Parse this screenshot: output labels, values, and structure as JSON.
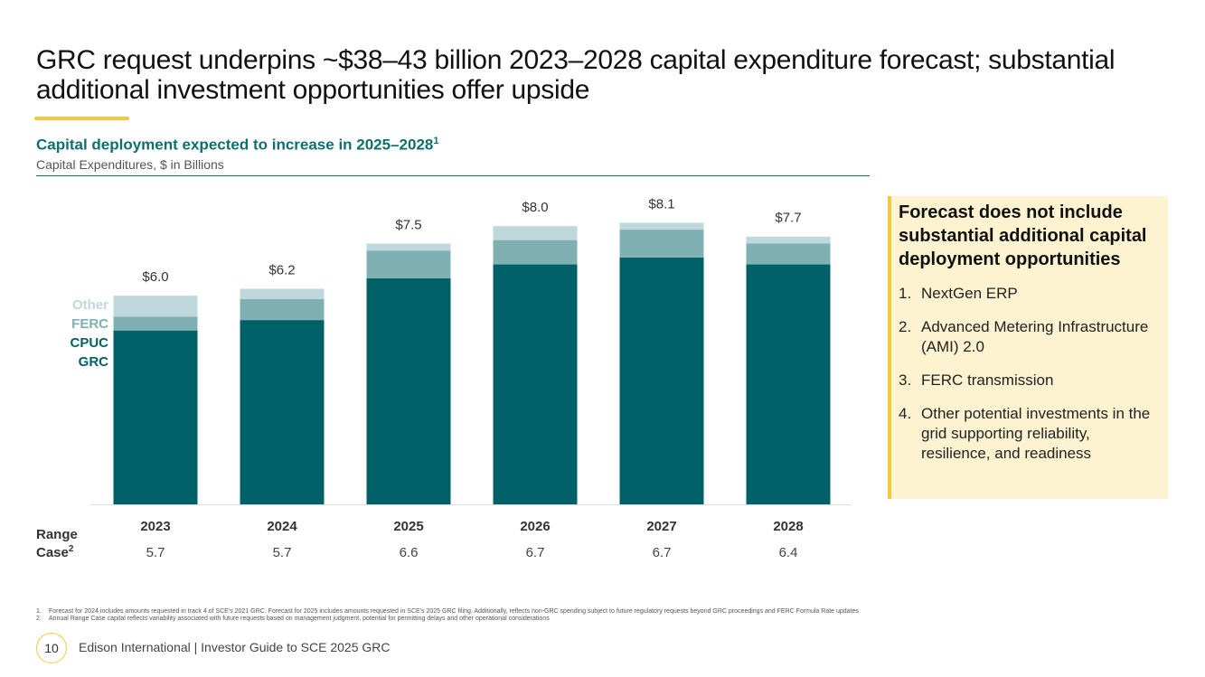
{
  "title": "GRC request underpins ~$38–43 billion 2023–2028 capital expenditure forecast; substantial additional investment opportunities offer upside",
  "chart_data": {
    "type": "stacked_bar",
    "title": "Capital deployment expected to increase in 2025–2028",
    "title_note": "1",
    "subtitle": "Capital Expenditures, $ in Billions",
    "categories": [
      "2023",
      "2024",
      "2025",
      "2026",
      "2027",
      "2028"
    ],
    "series": [
      {
        "name": "CPUC GRC",
        "color": "#006068",
        "values": [
          5.0,
          5.3,
          6.5,
          6.9,
          7.1,
          6.9
        ]
      },
      {
        "name": "FERC",
        "color": "#7fb0b4",
        "values": [
          0.4,
          0.6,
          0.8,
          0.7,
          0.8,
          0.6
        ]
      },
      {
        "name": "Other",
        "color": "#bfd8db",
        "values": [
          0.6,
          0.3,
          0.2,
          0.4,
          0.2,
          0.2
        ]
      }
    ],
    "totals": [
      6.0,
      6.2,
      7.5,
      8.0,
      8.1,
      7.7
    ],
    "total_labels": [
      "$6.0",
      "$6.2",
      "$7.5",
      "$8.0",
      "$8.1",
      "$7.7"
    ],
    "ylim": [
      0,
      8.5
    ],
    "range_case": {
      "label": [
        "Range",
        "Case"
      ],
      "note": "2",
      "values": [
        5.7,
        5.7,
        6.6,
        6.7,
        6.7,
        6.4
      ]
    }
  },
  "sidebar": {
    "heading": "Forecast does not include substantial additional capital deployment opportunities",
    "items": [
      {
        "number": "1.",
        "text": "NextGen ERP"
      },
      {
        "number": "2.",
        "text": "Advanced Metering Infrastructure (AMI) 2.0"
      },
      {
        "number": "3.",
        "text": "FERC transmission"
      },
      {
        "number": "4.",
        "text": "Other potential investments in the grid supporting reliability, resilience, and readiness"
      }
    ]
  },
  "footnotes": [
    {
      "number": "1.",
      "text": "Forecast for 2024 includes amounts requested in track 4 of SCE's 2021 GRC. Forecast for 2025 includes amounts requested in SCE's 2025 GRC filing. Additionally, reflects non-GRC spending subject to future regulatory requests beyond GRC proceedings and FERC Formula Rate updates"
    },
    {
      "number": "2.",
      "text": "Annual Range Case capital reflects variability associated with future requests based on management judgment, potential for permitting delays and other operational considerations"
    }
  ],
  "footer": {
    "page": "10",
    "text": "Edison International | Investor Guide to SCE 2025 GRC"
  }
}
